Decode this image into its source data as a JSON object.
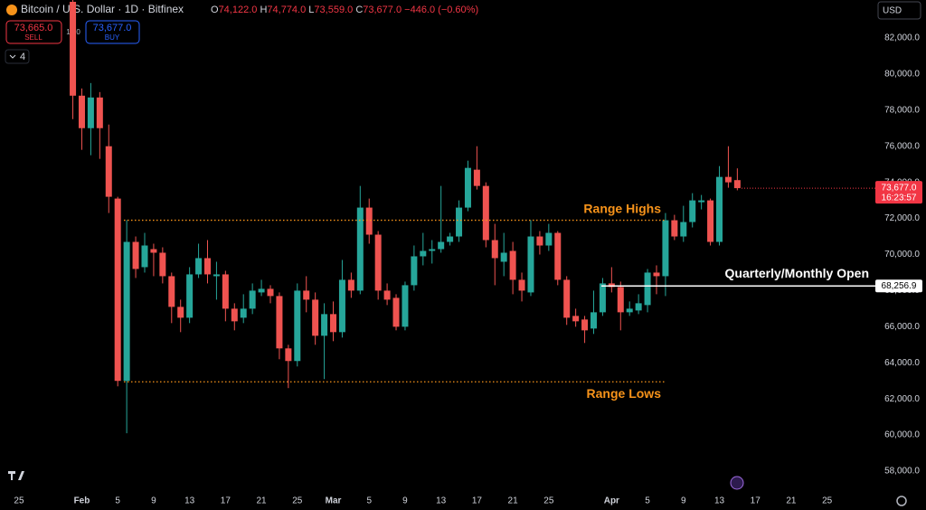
{
  "header": {
    "symbol": "Bitcoin / U.S. Dollar · 1D · Bitfinex",
    "ohlc": [
      {
        "key": "O",
        "value": "74,122.0"
      },
      {
        "key": "H",
        "value": "74,774.0"
      },
      {
        "key": "L",
        "value": "73,559.0"
      },
      {
        "key": "C",
        "value": "73,677.0"
      }
    ],
    "change": "−446.0 (−0.60%)"
  },
  "trade": {
    "sell_price": "73,665.0",
    "sell": "SELL",
    "spread": "12.0",
    "buy_price": "73,677.0",
    "buy": "BUY"
  },
  "indicators_count": "4",
  "currency": "USD",
  "chart_data": {
    "type": "candlestick",
    "categories": [
      "25",
      null,
      null,
      null,
      null,
      null,
      null,
      "Feb",
      null,
      null,
      null,
      "5",
      null,
      null,
      null,
      "9",
      null,
      null,
      null,
      "13",
      null,
      null,
      null,
      "17",
      null,
      null,
      null,
      "21",
      null,
      null,
      null,
      "25",
      null,
      null,
      null,
      "Mar",
      null,
      null,
      null,
      "5",
      null,
      null,
      null,
      "9",
      null,
      null,
      null,
      "13",
      null,
      null,
      null,
      "17",
      null,
      null,
      null,
      "21",
      null,
      null,
      null,
      "25",
      null,
      null,
      null,
      null,
      null,
      null,
      "Apr",
      null,
      null,
      null,
      "5",
      null,
      null,
      null,
      "9",
      null,
      null,
      null,
      "13",
      null,
      null,
      null,
      "17",
      null,
      null,
      null,
      "21",
      null,
      null,
      null,
      "25"
    ],
    "open": [
      null,
      null,
      null,
      null,
      null,
      null,
      84000,
      78800,
      77000,
      78700,
      76000,
      73100,
      63000,
      70700,
      69300,
      70300,
      70100,
      68800,
      67100,
      66500,
      68900,
      69800,
      68800,
      68900,
      67000,
      66500,
      67000,
      67900,
      68100,
      67700,
      64800,
      64100,
      68000,
      67500,
      65500,
      66700,
      65700,
      68600,
      68000,
      72600,
      71100,
      68000,
      67600,
      66000,
      68300,
      69900,
      70200,
      70300,
      70700,
      71000,
      72600,
      74700,
      73800,
      70800,
      69600,
      70200,
      68600,
      67900,
      71000,
      70500,
      71200,
      68600,
      66600,
      66400,
      65900,
      66800,
      68400,
      68200,
      66800,
      66900,
      67200,
      69000,
      68800,
      71900,
      71000,
      71800,
      72900,
      73000,
      70700,
      74300,
      74122,
      null,
      null,
      null,
      null,
      null,
      null,
      null,
      null,
      null,
      null
    ],
    "high": [
      null,
      null,
      null,
      null,
      null,
      null,
      84500,
      79200,
      79500,
      79000,
      77200,
      73200,
      71900,
      71000,
      71200,
      70600,
      70400,
      69000,
      67500,
      69300,
      70600,
      70800,
      69600,
      69100,
      67300,
      67800,
      68400,
      68600,
      68300,
      67900,
      65000,
      68400,
      68800,
      67900,
      67300,
      67400,
      69700,
      69000,
      73800,
      73100,
      71300,
      68400,
      67800,
      68500,
      70500,
      71200,
      70800,
      73800,
      71200,
      73000,
      75200,
      76000,
      74000,
      71700,
      71200,
      70700,
      69000,
      71900,
      71300,
      71700,
      71300,
      68800,
      67000,
      66600,
      68000,
      68700,
      69300,
      68500,
      67400,
      67800,
      69200,
      69400,
      72300,
      72200,
      72700,
      73400,
      73300,
      73100,
      74900,
      76000,
      74774,
      null,
      null,
      null,
      null,
      null,
      null,
      null,
      null,
      null,
      null
    ],
    "low": [
      null,
      null,
      null,
      null,
      null,
      null,
      77500,
      75800,
      75500,
      75300,
      72300,
      62700,
      60100,
      68700,
      69000,
      68800,
      68400,
      66200,
      65700,
      66200,
      68700,
      68400,
      67500,
      66300,
      65800,
      66200,
      66700,
      67700,
      67300,
      64200,
      62600,
      63800,
      66800,
      65000,
      63100,
      65200,
      65400,
      67600,
      67800,
      70600,
      67500,
      67200,
      65800,
      65800,
      68000,
      69400,
      69500,
      70100,
      70500,
      70700,
      72400,
      73600,
      70400,
      68300,
      68800,
      67800,
      67400,
      67700,
      70000,
      70200,
      68300,
      66100,
      66000,
      65100,
      65600,
      66600,
      67900,
      65800,
      66600,
      66700,
      66800,
      67800,
      67700,
      70800,
      70700,
      71500,
      72500,
      70500,
      70500,
      73700,
      73559,
      null,
      null,
      null,
      null,
      null,
      null,
      null,
      null,
      null,
      null
    ],
    "close": [
      null,
      null,
      null,
      null,
      null,
      null,
      78800,
      77000,
      78700,
      77000,
      73200,
      63000,
      70700,
      69200,
      70500,
      70100,
      68800,
      67100,
      66500,
      68900,
      69800,
      68900,
      68900,
      67000,
      66300,
      67000,
      68000,
      68100,
      67700,
      64800,
      64100,
      68000,
      67500,
      65500,
      66700,
      65700,
      68600,
      68000,
      72600,
      71100,
      68000,
      67500,
      66000,
      68300,
      69900,
      70200,
      70300,
      70700,
      71000,
      72600,
      74800,
      73800,
      70800,
      69800,
      70100,
      68600,
      68000,
      71000,
      70500,
      71200,
      68600,
      66500,
      66300,
      65800,
      66800,
      68400,
      68200,
      66800,
      67000,
      67300,
      69000,
      68800,
      71900,
      71000,
      71800,
      73000,
      73000,
      70700,
      74300,
      74000,
      73677,
      null,
      null,
      null,
      null,
      null,
      null,
      null,
      null,
      null,
      null
    ],
    "up_color": "#26a69a",
    "down_color": "#ef5350",
    "ylim": [
      57050,
      84100
    ],
    "yticks": [
      {
        "value": 58000,
        "label": "58,000.0"
      },
      {
        "value": 60000,
        "label": "60,000.0"
      },
      {
        "value": 62000,
        "label": "62,000.0"
      },
      {
        "value": 64000,
        "label": "64,000.0"
      },
      {
        "value": 66000,
        "label": "66,000.0"
      },
      {
        "value": 68000,
        "label": "68,000.0"
      },
      {
        "value": 70000,
        "label": "70,000.0"
      },
      {
        "value": 72000,
        "label": "72,000.0"
      },
      {
        "value": 74000,
        "label": "74,000.0"
      },
      {
        "value": 76000,
        "label": "76,000.0"
      },
      {
        "value": 78000,
        "label": "78,000.0"
      },
      {
        "value": 80000,
        "label": "80,000.0"
      },
      {
        "value": 82000,
        "label": "82,000.0"
      }
    ],
    "lines": [
      {
        "label": "Range Highs",
        "value": 71900,
        "color": "#f7931a",
        "style": "dotted"
      },
      {
        "label": "Range Lows",
        "value": 62950,
        "color": "#f7931a",
        "style": "dotted"
      },
      {
        "label": "Quarterly/Monthly Open",
        "value": 68256.9,
        "value_label": "68,256.9",
        "color": "#ffffff",
        "style": "solid"
      }
    ],
    "last_price": {
      "value": 73677,
      "label": "73,677.0",
      "countdown": "16:23:57",
      "color": "#f23645"
    }
  }
}
